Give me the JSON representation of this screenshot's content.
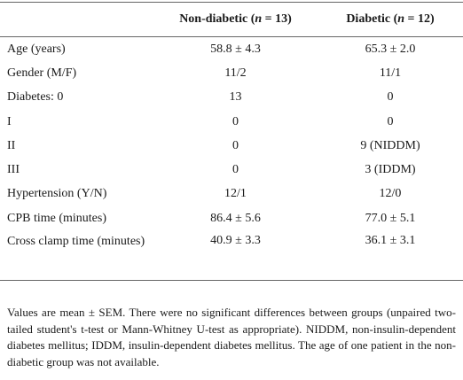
{
  "table": {
    "header": [
      "",
      "Non-diabetic (n = 13)",
      "Diabetic (n = 12)"
    ],
    "rows": [
      [
        "Age (years)",
        "58.8 ± 4.3",
        "65.3 ± 2.0"
      ],
      [
        "Gender (M/F)",
        "11/2",
        "11/1"
      ],
      [
        "Diabetes: 0",
        "13",
        "0"
      ],
      [
        "I",
        "0",
        "0"
      ],
      [
        "II",
        "0",
        "9 (NIDDM)"
      ],
      [
        "III",
        "0",
        "3 (IDDM)"
      ],
      [
        "Hypertension (Y/N)",
        "12/1",
        "12/0"
      ],
      [
        "CPB time (minutes)",
        "86.4 ± 5.6",
        "77.0 ± 5.1"
      ],
      [
        "Cross clamp time (minutes)",
        "40.9 ± 3.3",
        "36.1 ± 3.1"
      ]
    ]
  },
  "footnote": "Values are mean ± SEM. There were no significant differences between groups (unpaired two-tailed student's t-test or Mann-Whitney U-test as appropriate). NIDDM, non-insulin-dependent diabetes mellitus; IDDM, insulin-dependent diabetes mellitus. The age of one patient in the non-diabetic group was not available."
}
